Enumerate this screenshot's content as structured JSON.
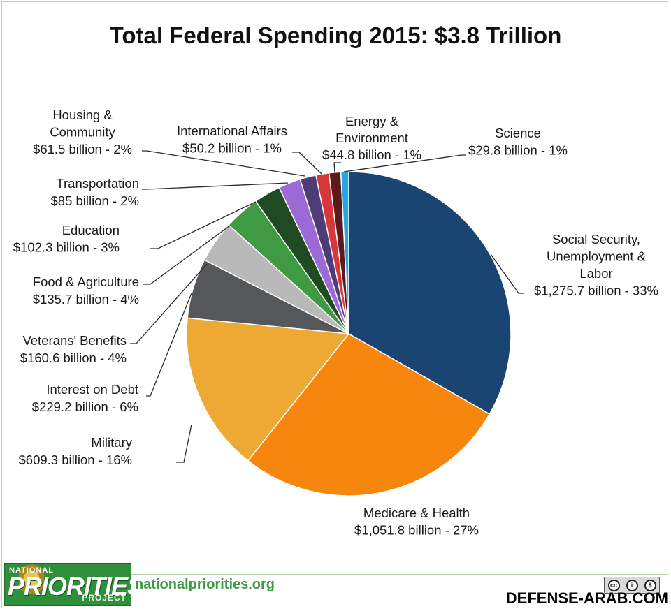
{
  "title": "Total Federal Spending 2015: $3.8 Trillion",
  "chart_data": {
    "type": "pie",
    "title": "Total Federal Spending 2015: $3.8 Trillion",
    "unit": "billion",
    "slices": [
      {
        "name": "Social Security, Unemployment & Labor",
        "value": 1275.7,
        "pct": 33,
        "color": "#1a4572",
        "label_lines": [
          "Social Security,",
          "Unemployment &",
          "Labor",
          "$1,275.7 billion - 33%"
        ]
      },
      {
        "name": "Medicare & Health",
        "value": 1051.8,
        "pct": 27,
        "color": "#f7860e",
        "label_lines": [
          "Medicare & Health",
          "$1,051.8 billion - 27%"
        ]
      },
      {
        "name": "Military",
        "value": 609.3,
        "pct": 16,
        "color": "#eea935",
        "label_lines": [
          "Military",
          "$609.3 billion - 16%"
        ]
      },
      {
        "name": "Interest on Debt",
        "value": 229.2,
        "pct": 6,
        "color": "#55575a",
        "label_lines": [
          "Interest on Debt",
          "$229.2 billion - 6%"
        ]
      },
      {
        "name": "Veterans' Benefits",
        "value": 160.6,
        "pct": 4,
        "color": "#b8b9b8",
        "label_lines": [
          "Veterans' Benefits",
          "$160.6 billion - 4%"
        ]
      },
      {
        "name": "Food & Agriculture",
        "value": 135.7,
        "pct": 4,
        "color": "#3f9a43",
        "label_lines": [
          "Food & Agriculture",
          "$135.7 billion - 4%"
        ]
      },
      {
        "name": "Education",
        "value": 102.3,
        "pct": 3,
        "color": "#1f4a24",
        "label_lines": [
          "Education",
          "$102.3 billion - 3%"
        ]
      },
      {
        "name": "Transportation",
        "value": 85,
        "pct": 2,
        "color": "#9c69d6",
        "label_lines": [
          "Transportation",
          "$85 billion - 2%"
        ]
      },
      {
        "name": "Housing & Community",
        "value": 61.5,
        "pct": 2,
        "color": "#4d3c78",
        "label_lines": [
          "Housing &",
          "Community",
          "$61.5 billion - 2%"
        ]
      },
      {
        "name": "International Affairs",
        "value": 50.2,
        "pct": 1,
        "color": "#d8373a",
        "label_lines": [
          "International Affairs",
          "$50.2 billion - 1%"
        ]
      },
      {
        "name": "Energy & Environment",
        "value": 44.8,
        "pct": 1,
        "color": "#5e1a1a",
        "label_lines": [
          "Energy &",
          "Environment",
          "$44.8 billion - 1%"
        ]
      },
      {
        "name": "Science",
        "value": 29.8,
        "pct": 1,
        "color": "#2aa7e0",
        "label_lines": [
          "Science",
          "$29.8 billion - 1%"
        ]
      }
    ]
  },
  "footer": {
    "logo_top": "NATIONAL",
    "logo_main": "PRIORITIES",
    "logo_sub": "PROJECT",
    "site": "nationalpriorities.org",
    "license_icons": [
      "cc",
      "i",
      "$"
    ],
    "watermark": "DEFENSE-ARAB.COM"
  }
}
